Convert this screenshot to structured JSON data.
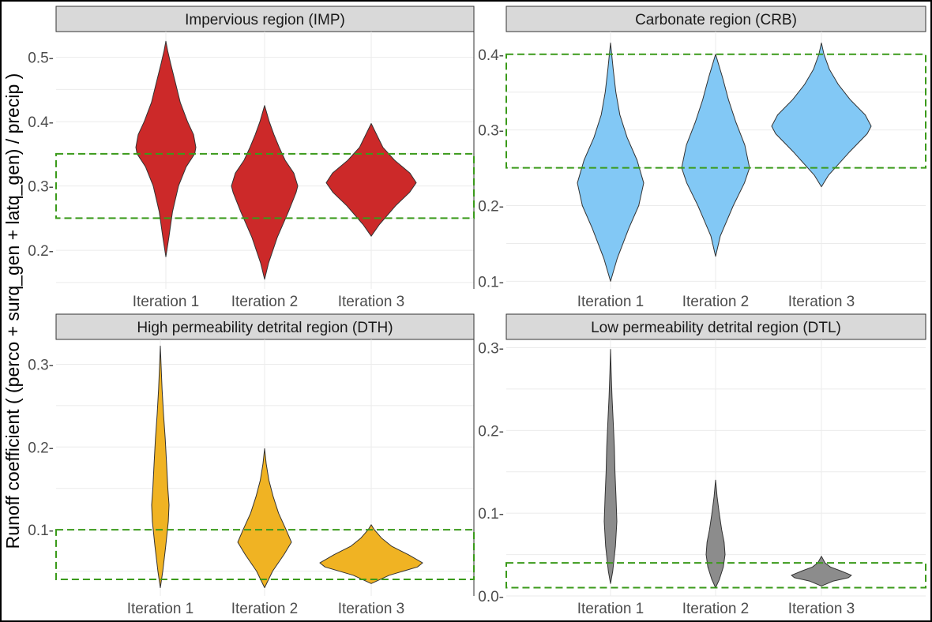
{
  "figure": {
    "ylabel": "Runoff coefficient ( (perco + surq_gen + latq_gen) / precip )",
    "colors": {
      "panel_header": "#d9d9d9",
      "grid": "#ebebeb",
      "target_box": "#3a9a1a"
    }
  },
  "chart_data": [
    {
      "type": "violin",
      "title": "Impervious region (IMP)",
      "fill": "#cc2929",
      "categories": [
        "Iteration 1",
        "Iteration 2",
        "Iteration 3"
      ],
      "ylim": [
        0.14,
        0.54
      ],
      "yticks": [
        0.2,
        0.3,
        0.4,
        0.5
      ],
      "ytick_labels": [
        "0.2-",
        "0.3-",
        "0.4-",
        "0.5-"
      ],
      "target_range": [
        0.25,
        0.35
      ],
      "series": [
        {
          "min": 0.19,
          "max": 0.525,
          "profile": [
            [
              0.19,
              0
            ],
            [
              0.22,
              0.1
            ],
            [
              0.26,
              0.22
            ],
            [
              0.3,
              0.42
            ],
            [
              0.33,
              0.68
            ],
            [
              0.35,
              0.96
            ],
            [
              0.36,
              1.0
            ],
            [
              0.38,
              0.92
            ],
            [
              0.4,
              0.72
            ],
            [
              0.43,
              0.48
            ],
            [
              0.46,
              0.32
            ],
            [
              0.49,
              0.16
            ],
            [
              0.51,
              0.06
            ],
            [
              0.525,
              0
            ]
          ]
        },
        {
          "min": 0.155,
          "max": 0.425,
          "profile": [
            [
              0.155,
              0
            ],
            [
              0.18,
              0.12
            ],
            [
              0.22,
              0.38
            ],
            [
              0.26,
              0.72
            ],
            [
              0.29,
              0.95
            ],
            [
              0.3,
              1.0
            ],
            [
              0.32,
              0.88
            ],
            [
              0.34,
              0.62
            ],
            [
              0.36,
              0.44
            ],
            [
              0.38,
              0.28
            ],
            [
              0.4,
              0.14
            ],
            [
              0.425,
              0
            ]
          ]
        },
        {
          "min": 0.222,
          "max": 0.397,
          "profile": [
            [
              0.222,
              0
            ],
            [
              0.24,
              0.18
            ],
            [
              0.27,
              0.55
            ],
            [
              0.29,
              0.85
            ],
            [
              0.305,
              1.0
            ],
            [
              0.32,
              0.86
            ],
            [
              0.34,
              0.52
            ],
            [
              0.36,
              0.26
            ],
            [
              0.38,
              0.12
            ],
            [
              0.397,
              0
            ]
          ]
        }
      ]
    },
    {
      "type": "violin",
      "title": "Carbonate region (CRB)",
      "fill": "#82c8f5",
      "categories": [
        "Iteration 1",
        "Iteration 2",
        "Iteration 3"
      ],
      "ylim": [
        0.09,
        0.43
      ],
      "yticks": [
        0.1,
        0.2,
        0.3,
        0.4
      ],
      "ytick_labels": [
        "0.1-",
        "0.2-",
        "0.3-",
        "0.4-"
      ],
      "target_range": [
        0.25,
        0.4
      ],
      "series": [
        {
          "min": 0.1,
          "max": 0.415,
          "profile": [
            [
              0.1,
              0
            ],
            [
              0.13,
              0.2
            ],
            [
              0.17,
              0.55
            ],
            [
              0.2,
              0.85
            ],
            [
              0.23,
              1.0
            ],
            [
              0.26,
              0.8
            ],
            [
              0.29,
              0.5
            ],
            [
              0.32,
              0.28
            ],
            [
              0.35,
              0.16
            ],
            [
              0.38,
              0.08
            ],
            [
              0.415,
              0
            ]
          ]
        },
        {
          "min": 0.133,
          "max": 0.4,
          "profile": [
            [
              0.133,
              0
            ],
            [
              0.16,
              0.14
            ],
            [
              0.2,
              0.52
            ],
            [
              0.23,
              0.85
            ],
            [
              0.25,
              1.0
            ],
            [
              0.28,
              0.86
            ],
            [
              0.31,
              0.6
            ],
            [
              0.34,
              0.38
            ],
            [
              0.37,
              0.2
            ],
            [
              0.4,
              0
            ]
          ]
        },
        {
          "min": 0.225,
          "max": 0.415,
          "profile": [
            [
              0.225,
              0
            ],
            [
              0.24,
              0.14
            ],
            [
              0.27,
              0.55
            ],
            [
              0.295,
              0.92
            ],
            [
              0.305,
              1.0
            ],
            [
              0.32,
              0.88
            ],
            [
              0.34,
              0.58
            ],
            [
              0.36,
              0.34
            ],
            [
              0.38,
              0.16
            ],
            [
              0.4,
              0.05
            ],
            [
              0.415,
              0
            ]
          ]
        }
      ]
    },
    {
      "type": "violin",
      "title": "High permeability detrital region (DTH)",
      "fill": "#f0b323",
      "categories": [
        "Iteration 1",
        "Iteration 2",
        "Iteration 3"
      ],
      "ylim": [
        0.02,
        0.33
      ],
      "yticks": [
        0.1,
        0.2,
        0.3
      ],
      "ytick_labels": [
        "0.1-",
        "0.2-",
        "0.3-"
      ],
      "target_range": [
        0.04,
        0.1
      ],
      "series": [
        {
          "min": 0.03,
          "max": 0.322,
          "profile": [
            [
              0.03,
              0
            ],
            [
              0.05,
              0.28
            ],
            [
              0.08,
              0.62
            ],
            [
              0.11,
              0.92
            ],
            [
              0.13,
              1.0
            ],
            [
              0.15,
              0.86
            ],
            [
              0.18,
              0.72
            ],
            [
              0.21,
              0.56
            ],
            [
              0.24,
              0.36
            ],
            [
              0.27,
              0.2
            ],
            [
              0.3,
              0.08
            ],
            [
              0.322,
              0
            ]
          ]
        },
        {
          "min": 0.03,
          "max": 0.198,
          "profile": [
            [
              0.03,
              0
            ],
            [
              0.05,
              0.3
            ],
            [
              0.07,
              0.72
            ],
            [
              0.085,
              1.0
            ],
            [
              0.1,
              0.8
            ],
            [
              0.12,
              0.52
            ],
            [
              0.14,
              0.32
            ],
            [
              0.16,
              0.16
            ],
            [
              0.18,
              0.06
            ],
            [
              0.198,
              0
            ]
          ]
        },
        {
          "min": 0.035,
          "max": 0.106,
          "profile": [
            [
              0.035,
              0
            ],
            [
              0.045,
              0.35
            ],
            [
              0.055,
              0.9
            ],
            [
              0.06,
              1.0
            ],
            [
              0.07,
              0.72
            ],
            [
              0.08,
              0.4
            ],
            [
              0.09,
              0.2
            ],
            [
              0.1,
              0.06
            ],
            [
              0.106,
              0
            ]
          ]
        }
      ]
    },
    {
      "type": "violin",
      "title": "Low permeability detrital region (DTL)",
      "fill": "#8c8c8c",
      "categories": [
        "Iteration 1",
        "Iteration 2",
        "Iteration 3"
      ],
      "ylim": [
        0.0,
        0.31
      ],
      "yticks": [
        0.0,
        0.1,
        0.2,
        0.3
      ],
      "ytick_labels": [
        "0.0-",
        "0.1-",
        "0.2-",
        "0.3-"
      ],
      "target_range": [
        0.01,
        0.04
      ],
      "series": [
        {
          "min": 0.015,
          "max": 0.298,
          "profile": [
            [
              0.015,
              0
            ],
            [
              0.03,
              0.35
            ],
            [
              0.06,
              0.78
            ],
            [
              0.09,
              1.0
            ],
            [
              0.12,
              0.86
            ],
            [
              0.15,
              0.7
            ],
            [
              0.18,
              0.6
            ],
            [
              0.21,
              0.42
            ],
            [
              0.24,
              0.24
            ],
            [
              0.27,
              0.1
            ],
            [
              0.298,
              0
            ]
          ]
        },
        {
          "min": 0.01,
          "max": 0.14,
          "profile": [
            [
              0.01,
              0
            ],
            [
              0.02,
              0.4
            ],
            [
              0.035,
              0.82
            ],
            [
              0.05,
              1.0
            ],
            [
              0.065,
              0.9
            ],
            [
              0.08,
              0.64
            ],
            [
              0.1,
              0.38
            ],
            [
              0.12,
              0.16
            ],
            [
              0.14,
              0
            ]
          ]
        },
        {
          "min": 0.012,
          "max": 0.048,
          "profile": [
            [
              0.012,
              0
            ],
            [
              0.018,
              0.4
            ],
            [
              0.022,
              0.9
            ],
            [
              0.025,
              1.0
            ],
            [
              0.03,
              0.66
            ],
            [
              0.035,
              0.3
            ],
            [
              0.04,
              0.12
            ],
            [
              0.048,
              0
            ]
          ]
        }
      ]
    }
  ]
}
